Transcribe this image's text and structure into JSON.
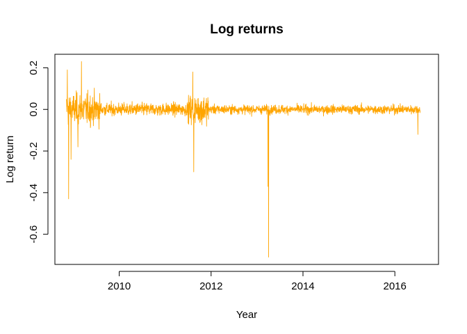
{
  "chart_data": {
    "type": "line",
    "title": "Log returns",
    "xlabel": "Year",
    "ylabel": "Log return",
    "xlim": [
      2008.6,
      2016.95
    ],
    "ylim": [
      -0.745,
      0.265
    ],
    "x_ticks": [
      2010,
      2012,
      2014,
      2016
    ],
    "x_tick_labels": [
      "2010",
      "2012",
      "2014",
      "2016"
    ],
    "y_ticks": [
      0.2,
      0.0,
      -0.2,
      -0.4,
      -0.6
    ],
    "y_tick_labels": [
      "0.2",
      "0.0",
      "-0.2",
      "-0.4",
      "-0.6"
    ],
    "grid": false,
    "legend": "none",
    "series": [
      {
        "color": "#FFA500",
        "x_start": 2008.85,
        "x_end": 2016.55,
        "regimes": [
          {
            "from": 2008.85,
            "to": 2009.6,
            "volatility": 0.07
          },
          {
            "from": 2009.6,
            "to": 2011.5,
            "volatility": 0.028
          },
          {
            "from": 2011.5,
            "to": 2011.95,
            "volatility": 0.065
          },
          {
            "from": 2011.95,
            "to": 2016.55,
            "volatility": 0.02
          }
        ],
        "notable_points": [
          {
            "x": 2008.9,
            "y": -0.43
          },
          {
            "x": 2008.87,
            "y": 0.19
          },
          {
            "x": 2008.95,
            "y": -0.24
          },
          {
            "x": 2009.18,
            "y": 0.23
          },
          {
            "x": 2009.1,
            "y": -0.18
          },
          {
            "x": 2011.6,
            "y": 0.18
          },
          {
            "x": 2011.62,
            "y": -0.3
          },
          {
            "x": 2013.25,
            "y": -0.71
          },
          {
            "x": 2013.24,
            "y": -0.37
          },
          {
            "x": 2016.5,
            "y": -0.12
          }
        ]
      }
    ]
  }
}
